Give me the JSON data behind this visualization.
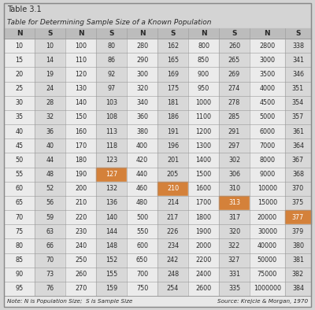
{
  "title": "Table 3.1",
  "subtitle": "Table for Determining Sample Size of a Known Population",
  "headers": [
    "N",
    "S",
    "N",
    "S",
    "N",
    "S",
    "N",
    "S",
    "N",
    "S"
  ],
  "rows": [
    [
      "10",
      "10",
      "100",
      "80",
      "280",
      "162",
      "800",
      "260",
      "2800",
      "338"
    ],
    [
      "15",
      "14",
      "110",
      "86",
      "290",
      "165",
      "850",
      "265",
      "3000",
      "341"
    ],
    [
      "20",
      "19",
      "120",
      "92",
      "300",
      "169",
      "900",
      "269",
      "3500",
      "346"
    ],
    [
      "25",
      "24",
      "130",
      "97",
      "320",
      "175",
      "950",
      "274",
      "4000",
      "351"
    ],
    [
      "30",
      "28",
      "140",
      "103",
      "340",
      "181",
      "1000",
      "278",
      "4500",
      "354"
    ],
    [
      "35",
      "32",
      "150",
      "108",
      "360",
      "186",
      "1100",
      "285",
      "5000",
      "357"
    ],
    [
      "40",
      "36",
      "160",
      "113",
      "380",
      "191",
      "1200",
      "291",
      "6000",
      "361"
    ],
    [
      "45",
      "40",
      "170",
      "118",
      "400",
      "196",
      "1300",
      "297",
      "7000",
      "364"
    ],
    [
      "50",
      "44",
      "180",
      "123",
      "420",
      "201",
      "1400",
      "302",
      "8000",
      "367"
    ],
    [
      "55",
      "48",
      "190",
      "127",
      "440",
      "205",
      "1500",
      "306",
      "9000",
      "368"
    ],
    [
      "60",
      "52",
      "200",
      "132",
      "460",
      "210",
      "1600",
      "310",
      "10000",
      "370"
    ],
    [
      "65",
      "56",
      "210",
      "136",
      "480",
      "214",
      "1700",
      "313",
      "15000",
      "375"
    ],
    [
      "70",
      "59",
      "220",
      "140",
      "500",
      "217",
      "1800",
      "317",
      "20000",
      "377"
    ],
    [
      "75",
      "63",
      "230",
      "144",
      "550",
      "226",
      "1900",
      "320",
      "30000",
      "379"
    ],
    [
      "80",
      "66",
      "240",
      "148",
      "600",
      "234",
      "2000",
      "322",
      "40000",
      "380"
    ],
    [
      "85",
      "70",
      "250",
      "152",
      "650",
      "242",
      "2200",
      "327",
      "50000",
      "381"
    ],
    [
      "90",
      "73",
      "260",
      "155",
      "700",
      "248",
      "2400",
      "331",
      "75000",
      "382"
    ],
    [
      "95",
      "76",
      "270",
      "159",
      "750",
      "254",
      "2600",
      "335",
      "1000000",
      "384"
    ]
  ],
  "orange_cells": [
    [
      9,
      3
    ],
    [
      10,
      5
    ],
    [
      11,
      7
    ],
    [
      12,
      9
    ]
  ],
  "note_left": "Note: N is Population Size;  S is Sample Size",
  "note_right": "Source: Krejcie & Morgan, 1970",
  "bg_outer": "#d4d4d4",
  "bg_title": "#d4d4d4",
  "bg_subtitle": "#d4d4d4",
  "bg_header": "#bcbcbc",
  "bg_col_N": "#ebebeb",
  "bg_col_S": "#d8d8d8",
  "bg_note": "#e8e8e8",
  "orange_color": "#d4813a",
  "text_dark": "#2a2a2a",
  "border_color": "#999999",
  "title_fontsize": 7.0,
  "subtitle_fontsize": 6.5,
  "header_fontsize": 6.5,
  "data_fontsize": 5.8,
  "note_fontsize": 5.2
}
